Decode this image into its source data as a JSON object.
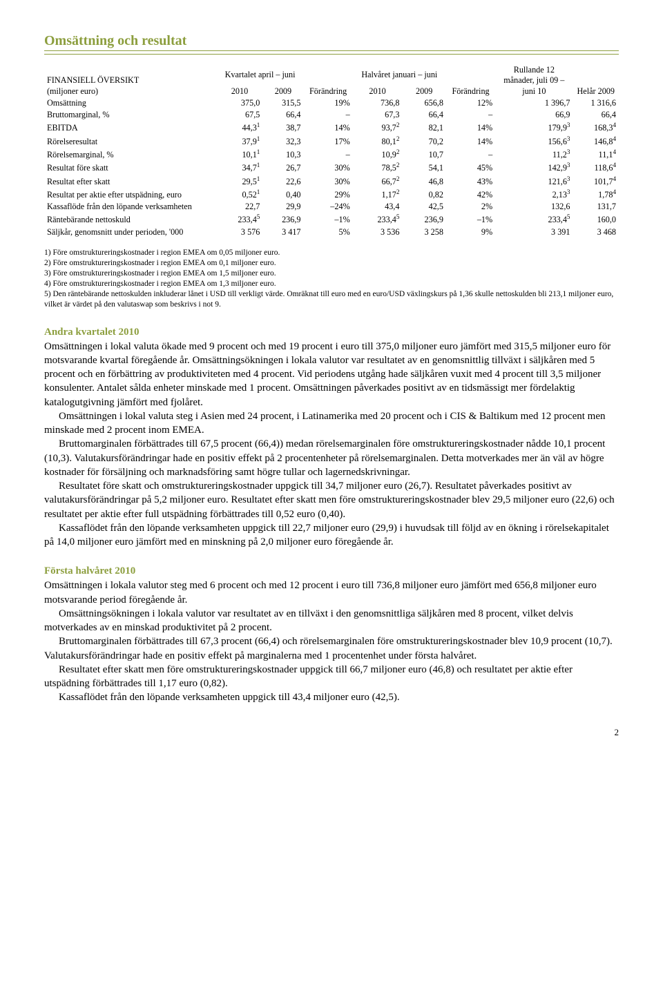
{
  "title": "Omsättning och resultat",
  "table": {
    "row_header_line1": "FINANSIELL ÖVERSIKT",
    "row_header_line2": "(miljoner euro)",
    "group_headers": {
      "q": "Kvartalet april – juni",
      "chg1": "Förändring",
      "h": "Halvåret januari – juni",
      "chg2": "Förändring",
      "roll": "Rullande 12 månader, juli 09 – juni 10",
      "fy": "Helår 2009"
    },
    "year_cols": {
      "y2010": "2010",
      "y2009": "2009"
    },
    "rows": [
      {
        "label": "Omsättning",
        "c": [
          "375,0",
          "315,5",
          "19%",
          "736,8",
          "656,8",
          "12%",
          "1 396,7",
          "1 316,6"
        ],
        "sup": [
          0,
          0,
          0,
          0,
          0,
          0,
          0,
          0
        ]
      },
      {
        "label": "Bruttomarginal, %",
        "c": [
          "67,5",
          "66,4",
          "–",
          "67,3",
          "66,4",
          "–",
          "66,9",
          "66,4"
        ],
        "sup": [
          0,
          0,
          0,
          0,
          0,
          0,
          0,
          0
        ]
      },
      {
        "label": "EBITDA",
        "c": [
          "44,3",
          "38,7",
          "14%",
          "93,7",
          "82,1",
          "14%",
          "179,9",
          "168,3"
        ],
        "sup": [
          1,
          0,
          0,
          2,
          0,
          0,
          3,
          4
        ]
      },
      {
        "label": "Rörelseresultat",
        "c": [
          "37,9",
          "32,3",
          "17%",
          "80,1",
          "70,2",
          "14%",
          "156,6",
          "146,8"
        ],
        "sup": [
          1,
          0,
          0,
          2,
          0,
          0,
          3,
          4
        ]
      },
      {
        "label": "Rörelsemarginal, %",
        "c": [
          "10,1",
          "10,3",
          "–",
          "10,9",
          "10,7",
          "–",
          "11,2",
          "11,1"
        ],
        "sup": [
          1,
          0,
          0,
          2,
          0,
          0,
          3,
          4
        ]
      },
      {
        "label": "Resultat före skatt",
        "c": [
          "34,7",
          "26,7",
          "30%",
          "78,5",
          "54,1",
          "45%",
          "142,9",
          "118,6"
        ],
        "sup": [
          1,
          0,
          0,
          2,
          0,
          0,
          3,
          4
        ]
      },
      {
        "label": "Resultat efter skatt",
        "c": [
          "29,5",
          "22,6",
          "30%",
          "66,7",
          "46,8",
          "43%",
          "121,6",
          "101,7"
        ],
        "sup": [
          1,
          0,
          0,
          2,
          0,
          0,
          3,
          4
        ]
      },
      {
        "label": "Resultat per aktie efter utspädning, euro",
        "c": [
          "0,52",
          "0,40",
          "29%",
          "1,17",
          "0,82",
          "42%",
          "2,13",
          "1,78"
        ],
        "sup": [
          1,
          0,
          0,
          2,
          0,
          0,
          3,
          4
        ]
      },
      {
        "label": "Kassaflöde från den löpande verksamheten",
        "c": [
          "22,7",
          "29,9",
          "–24%",
          "43,4",
          "42,5",
          "2%",
          "132,6",
          "131,7"
        ],
        "sup": [
          0,
          0,
          0,
          0,
          0,
          0,
          0,
          0
        ]
      },
      {
        "label": "Räntebärande nettoskuld",
        "c": [
          "233,4",
          "236,9",
          "–1%",
          "233,4",
          "236,9",
          "–1%",
          "233,4",
          "160,0"
        ],
        "sup": [
          5,
          0,
          0,
          5,
          0,
          0,
          5,
          0
        ]
      },
      {
        "label": "Säljkår, genomsnitt under perioden, '000",
        "c": [
          "3 576",
          "3 417",
          "5%",
          "3 536",
          "3 258",
          "9%",
          "3 391",
          "3 468"
        ],
        "sup": [
          0,
          0,
          0,
          0,
          0,
          0,
          0,
          0
        ]
      }
    ]
  },
  "footnotes": [
    "1) Före omstruktureringskostnader i region EMEA om 0,05 miljoner euro.",
    "2) Före omstruktureringskostnader i region EMEA om 0,1 miljoner euro.",
    "3) Före omstruktureringskostnader i region EMEA om 1,5 miljoner euro.",
    "4) Före omstruktureringskostnader i region EMEA om 1,3 miljoner euro.",
    "5) Den räntebärande nettoskulden inkluderar lånet i USD till verkligt värde. Omräknat till euro med en euro/USD växlingskurs på 1,36 skulle nettoskulden bli 213,1 miljoner euro, vilket är värdet på den valutaswap som beskrivs i not 9."
  ],
  "sections": [
    {
      "heading": "Andra kvartalet 2010",
      "paragraphs": [
        "Omsättningen i lokal valuta ökade med 9 procent och med 19 procent i euro till 375,0 miljoner euro jämfört med 315,5 miljoner euro för motsvarande kvartal föregående år. Omsättningsökningen i lokala valutor var resultatet av en genomsnittlig tillväxt i säljkåren med 5 procent och en förbättring av produktiviteten med 4 procent. Vid periodens utgång hade säljkåren vuxit med 4 procent till 3,5 miljoner konsulenter. Antalet sålda enheter minskade med 1 procent. Omsättningen påverkades positivt av en tidsmässigt mer fördelaktig katalogutgivning jämfört med fjolåret.",
        "Omsättningen i lokal valuta steg i Asien med 24 procent, i Latinamerika med 20 procent och i CIS & Baltikum med 12 procent men minskade med 2 procent inom EMEA.",
        "Bruttomarginalen förbättrades till 67,5 procent (66,4)) medan rörelsemarginalen före omstruktureringskostnader nådde 10,1 procent (10,3). Valutakursförändringar hade en positiv effekt på 2 procentenheter på rörelsemarginalen. Detta motverkades mer än väl av högre kostnader för försäljning och marknadsföring samt högre tullar och lagernedskrivningar.",
        "Resultatet före skatt och omstruktureringskostnader uppgick till 34,7 miljoner euro (26,7). Resultatet påverkades positivt av valutakursförändringar på 5,2 miljoner euro. Resultatet efter skatt men före omstruktureringskostnader blev 29,5 miljoner euro (22,6) och resultatet per aktie efter full utspädning förbättrades till 0,52 euro (0,40).",
        "Kassaflödet från den löpande verksamheten uppgick till 22,7 miljoner euro (29,9) i huvudsak till följd av en ökning i rörelsekapitalet på 14,0 miljoner euro jämfört med en minskning på 2,0 miljoner euro föregående år."
      ]
    },
    {
      "heading": "Första halvåret 2010",
      "paragraphs": [
        "Omsättningen i lokala valutor steg med 6 procent och med 12 procent i euro till 736,8 miljoner euro jämfört med 656,8 miljoner euro motsvarande period föregående år.",
        "Omsättningsökningen i lokala valutor var resultatet av en tillväxt i den genomsnittliga säljkåren med 8 procent, vilket delvis motverkades av en minskad produktivitet på 2 procent.",
        "Bruttomarginalen förbättrades till 67,3 procent (66,4) och rörelsemarginalen före omstruktureringskostnader blev 10,9 procent (10,7). Valutakursförändringar hade en positiv effekt på marginalerna med 1 procentenhet under första halvåret.",
        "Resultatet efter skatt men före omstruktureringskostnader uppgick till 66,7 miljoner euro (46,8) och resultatet per aktie efter utspädning förbättrades till 1,17 euro (0,82).",
        "Kassaflödet från den löpande verksamheten uppgick till 43,4 miljoner euro (42,5)."
      ]
    }
  ],
  "page_number": "2",
  "colors": {
    "accent": "#8c9e3e",
    "text": "#000000",
    "background": "#ffffff"
  }
}
